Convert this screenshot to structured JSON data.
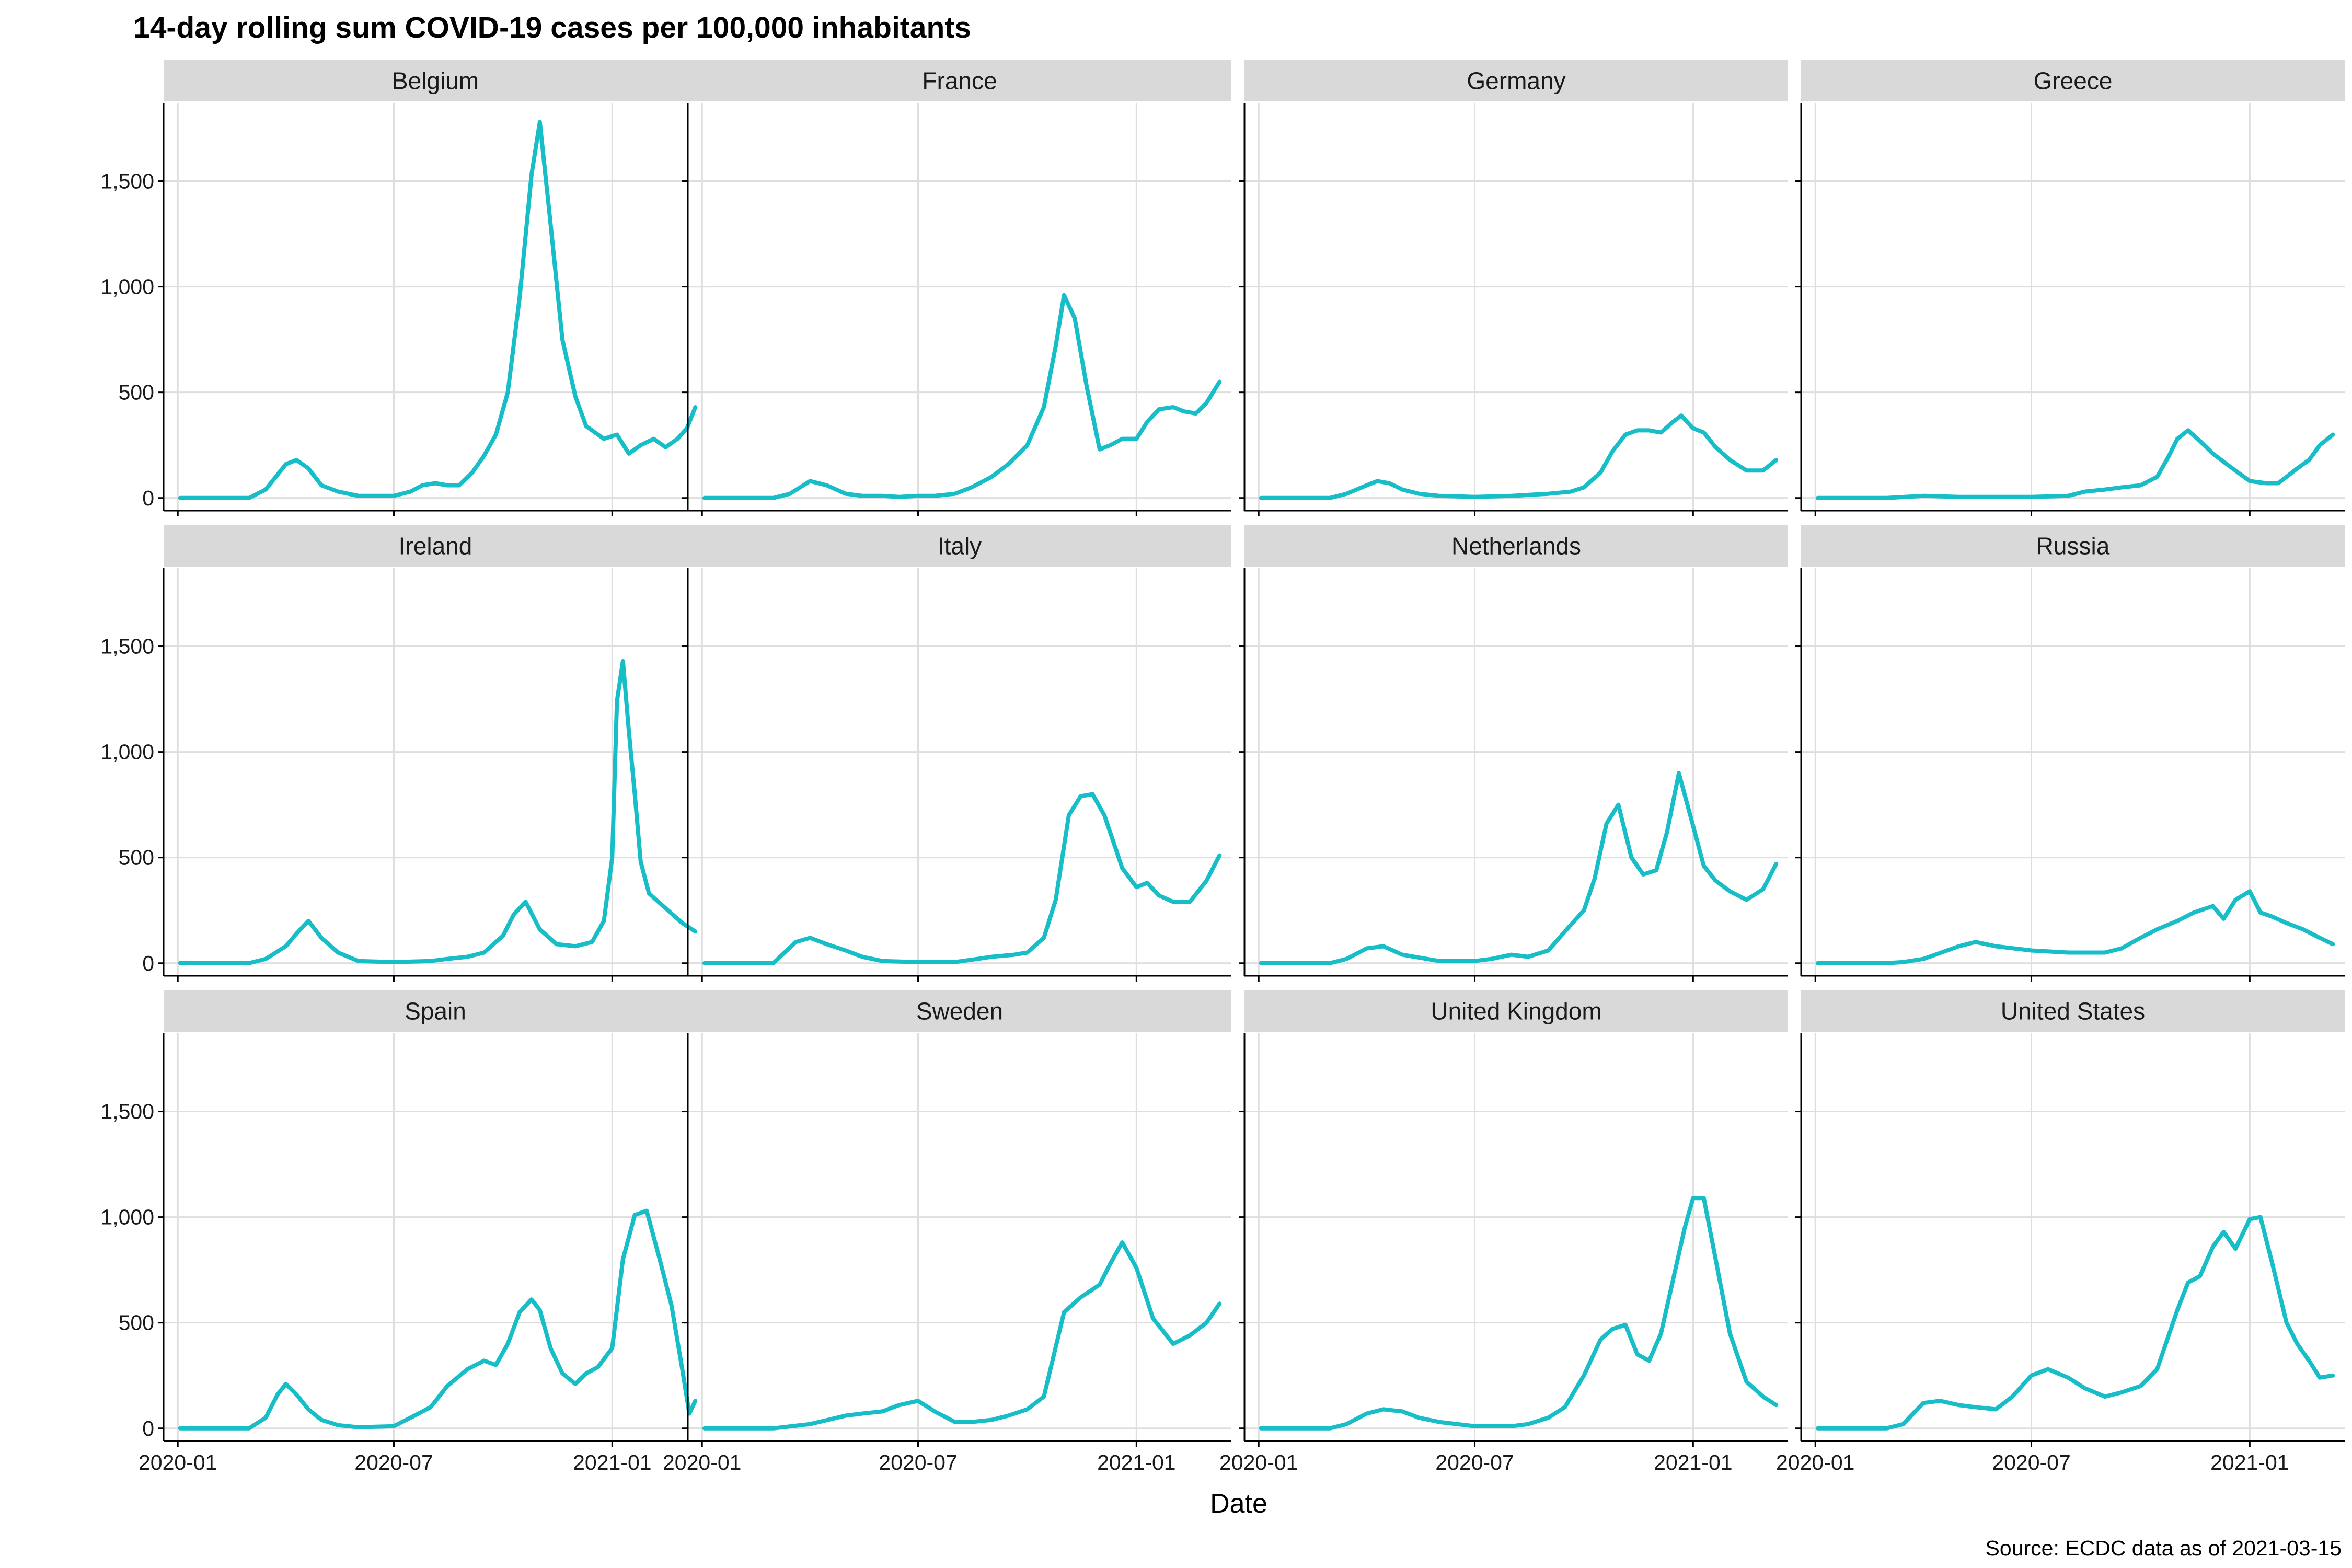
{
  "chart_data": {
    "type": "line",
    "title": "14-day rolling sum COVID-19 cases per 100,000 inhabitants",
    "xlabel": "Date",
    "ylabel": "",
    "caption": "Source: ECDC data as of 2021-03-15",
    "line_color": "#17bec8",
    "grid": true,
    "facet_layout": "4x3",
    "ylim": [
      -60,
      1870
    ],
    "y_ticks": [
      0,
      500,
      1000,
      1500
    ],
    "y_tick_labels": [
      "0",
      "500",
      "1,000",
      "1,500"
    ],
    "x_range": [
      "2019-12-20",
      "2021-03-22"
    ],
    "x_ticks": [
      "2020-01-01",
      "2020-07-01",
      "2021-01-01"
    ],
    "x_tick_labels": [
      "2020-01",
      "2020-07",
      "2021-01"
    ],
    "series": [
      {
        "name": "Belgium",
        "x": [
          "2020-01-03",
          "2020-03-01",
          "2020-03-15",
          "2020-04-01",
          "2020-04-10",
          "2020-04-20",
          "2020-05-01",
          "2020-05-15",
          "2020-06-01",
          "2020-06-15",
          "2020-07-01",
          "2020-07-15",
          "2020-07-25",
          "2020-08-05",
          "2020-08-15",
          "2020-08-25",
          "2020-09-05",
          "2020-09-15",
          "2020-09-25",
          "2020-10-05",
          "2020-10-15",
          "2020-10-25",
          "2020-11-01",
          "2020-11-10",
          "2020-11-20",
          "2020-12-01",
          "2020-12-10",
          "2020-12-25",
          "2021-01-05",
          "2021-01-15",
          "2021-01-25",
          "2021-02-05",
          "2021-02-15",
          "2021-02-25",
          "2021-03-05",
          "2021-03-12"
        ],
        "values": [
          0,
          0,
          40,
          160,
          180,
          140,
          60,
          30,
          10,
          10,
          10,
          30,
          60,
          70,
          60,
          60,
          120,
          200,
          300,
          500,
          950,
          1530,
          1780,
          1300,
          750,
          480,
          340,
          280,
          300,
          210,
          250,
          280,
          240,
          280,
          330,
          430
        ]
      },
      {
        "name": "France",
        "x": [
          "2020-01-03",
          "2020-03-01",
          "2020-03-15",
          "2020-04-01",
          "2020-04-15",
          "2020-05-01",
          "2020-05-15",
          "2020-06-01",
          "2020-06-15",
          "2020-07-01",
          "2020-07-15",
          "2020-08-01",
          "2020-08-15",
          "2020-09-01",
          "2020-09-15",
          "2020-10-01",
          "2020-10-15",
          "2020-10-25",
          "2020-11-01",
          "2020-11-10",
          "2020-11-20",
          "2020-12-01",
          "2020-12-10",
          "2020-12-20",
          "2021-01-01",
          "2021-01-10",
          "2021-01-20",
          "2021-02-01",
          "2021-02-10",
          "2021-02-20",
          "2021-03-01",
          "2021-03-12"
        ],
        "values": [
          0,
          0,
          20,
          80,
          60,
          20,
          10,
          10,
          5,
          10,
          10,
          20,
          50,
          100,
          160,
          250,
          430,
          720,
          960,
          850,
          530,
          230,
          250,
          280,
          280,
          360,
          420,
          430,
          410,
          400,
          450,
          550
        ]
      },
      {
        "name": "Germany",
        "x": [
          "2020-01-03",
          "2020-03-01",
          "2020-03-15",
          "2020-04-01",
          "2020-04-10",
          "2020-04-20",
          "2020-05-01",
          "2020-05-15",
          "2020-06-01",
          "2020-07-01",
          "2020-08-01",
          "2020-09-01",
          "2020-09-20",
          "2020-10-01",
          "2020-10-15",
          "2020-10-25",
          "2020-11-05",
          "2020-11-15",
          "2020-11-25",
          "2020-12-05",
          "2020-12-15",
          "2020-12-22",
          "2021-01-01",
          "2021-01-10",
          "2021-01-20",
          "2021-02-01",
          "2021-02-15",
          "2021-03-01",
          "2021-03-12"
        ],
        "values": [
          0,
          0,
          20,
          60,
          80,
          70,
          40,
          20,
          10,
          5,
          10,
          20,
          30,
          50,
          120,
          220,
          300,
          320,
          320,
          310,
          360,
          390,
          330,
          310,
          240,
          180,
          130,
          130,
          180
        ]
      },
      {
        "name": "Greece",
        "x": [
          "2020-01-03",
          "2020-03-01",
          "2020-04-01",
          "2020-05-01",
          "2020-06-01",
          "2020-07-01",
          "2020-08-01",
          "2020-08-15",
          "2020-09-01",
          "2020-09-15",
          "2020-10-01",
          "2020-10-15",
          "2020-10-25",
          "2020-11-01",
          "2020-11-10",
          "2020-11-20",
          "2020-12-01",
          "2020-12-15",
          "2021-01-01",
          "2021-01-15",
          "2021-01-25",
          "2021-02-01",
          "2021-02-10",
          "2021-02-20",
          "2021-03-01",
          "2021-03-12"
        ],
        "values": [
          0,
          0,
          10,
          5,
          5,
          5,
          10,
          30,
          40,
          50,
          60,
          100,
          200,
          280,
          320,
          270,
          210,
          150,
          80,
          70,
          70,
          100,
          140,
          180,
          250,
          300
        ]
      },
      {
        "name": "Ireland",
        "x": [
          "2020-01-03",
          "2020-03-01",
          "2020-03-15",
          "2020-04-01",
          "2020-04-10",
          "2020-04-20",
          "2020-05-01",
          "2020-05-15",
          "2020-06-01",
          "2020-07-01",
          "2020-08-01",
          "2020-08-15",
          "2020-09-01",
          "2020-09-15",
          "2020-10-01",
          "2020-10-10",
          "2020-10-20",
          "2020-11-01",
          "2020-11-15",
          "2020-12-01",
          "2020-12-15",
          "2020-12-25",
          "2021-01-01",
          "2021-01-05",
          "2021-01-10",
          "2021-01-15",
          "2021-01-20",
          "2021-01-25",
          "2021-02-01",
          "2021-02-15",
          "2021-03-01",
          "2021-03-12"
        ],
        "values": [
          0,
          0,
          20,
          80,
          140,
          200,
          120,
          50,
          10,
          5,
          10,
          20,
          30,
          50,
          130,
          230,
          290,
          160,
          90,
          80,
          100,
          200,
          500,
          1240,
          1430,
          1100,
          800,
          480,
          330,
          260,
          190,
          150
        ]
      },
      {
        "name": "Italy",
        "x": [
          "2020-01-03",
          "2020-03-01",
          "2020-03-20",
          "2020-04-01",
          "2020-04-15",
          "2020-05-01",
          "2020-05-15",
          "2020-06-01",
          "2020-07-01",
          "2020-08-01",
          "2020-08-20",
          "2020-09-01",
          "2020-09-20",
          "2020-10-01",
          "2020-10-15",
          "2020-10-25",
          "2020-11-05",
          "2020-11-15",
          "2020-11-25",
          "2020-12-05",
          "2020-12-20",
          "2021-01-01",
          "2021-01-10",
          "2021-01-20",
          "2021-02-01",
          "2021-02-15",
          "2021-03-01",
          "2021-03-12"
        ],
        "values": [
          0,
          0,
          100,
          120,
          90,
          60,
          30,
          10,
          5,
          5,
          20,
          30,
          40,
          50,
          120,
          300,
          700,
          790,
          800,
          700,
          450,
          360,
          380,
          320,
          290,
          290,
          390,
          510
        ]
      },
      {
        "name": "Netherlands",
        "x": [
          "2020-01-03",
          "2020-03-01",
          "2020-03-15",
          "2020-04-01",
          "2020-04-15",
          "2020-05-01",
          "2020-06-01",
          "2020-07-01",
          "2020-07-15",
          "2020-08-01",
          "2020-08-15",
          "2020-09-01",
          "2020-09-15",
          "2020-10-01",
          "2020-10-10",
          "2020-10-20",
          "2020-10-30",
          "2020-11-10",
          "2020-11-20",
          "2020-12-01",
          "2020-12-10",
          "2020-12-20",
          "2021-01-01",
          "2021-01-10",
          "2021-01-20",
          "2021-02-01",
          "2021-02-15",
          "2021-03-01",
          "2021-03-12"
        ],
        "values": [
          0,
          0,
          20,
          70,
          80,
          40,
          10,
          10,
          20,
          40,
          30,
          60,
          150,
          250,
          400,
          660,
          750,
          500,
          420,
          440,
          620,
          900,
          650,
          460,
          390,
          340,
          300,
          350,
          470
        ]
      },
      {
        "name": "Russia",
        "x": [
          "2020-01-03",
          "2020-03-01",
          "2020-03-15",
          "2020-04-01",
          "2020-05-01",
          "2020-05-15",
          "2020-06-01",
          "2020-07-01",
          "2020-08-01",
          "2020-09-01",
          "2020-09-15",
          "2020-10-01",
          "2020-10-15",
          "2020-11-01",
          "2020-11-15",
          "2020-12-01",
          "2020-12-10",
          "2020-12-20",
          "2021-01-01",
          "2021-01-10",
          "2021-01-20",
          "2021-02-01",
          "2021-02-15",
          "2021-03-01",
          "2021-03-12"
        ],
        "values": [
          0,
          0,
          5,
          20,
          80,
          100,
          80,
          60,
          50,
          50,
          70,
          120,
          160,
          200,
          240,
          270,
          210,
          300,
          340,
          240,
          220,
          190,
          160,
          120,
          90
        ]
      },
      {
        "name": "Spain",
        "x": [
          "2020-01-03",
          "2020-03-01",
          "2020-03-15",
          "2020-03-25",
          "2020-04-01",
          "2020-04-10",
          "2020-04-20",
          "2020-05-01",
          "2020-05-15",
          "2020-06-01",
          "2020-07-01",
          "2020-07-15",
          "2020-08-01",
          "2020-08-15",
          "2020-09-01",
          "2020-09-15",
          "2020-09-25",
          "2020-10-05",
          "2020-10-15",
          "2020-10-25",
          "2020-11-01",
          "2020-11-10",
          "2020-11-20",
          "2020-12-01",
          "2020-12-10",
          "2020-12-20",
          "2021-01-01",
          "2021-01-10",
          "2021-01-20",
          "2021-01-30",
          "2021-02-10",
          "2021-02-20",
          "2021-03-01",
          "2021-03-07",
          "2021-03-12"
        ],
        "values": [
          0,
          0,
          50,
          160,
          210,
          160,
          90,
          40,
          15,
          5,
          10,
          50,
          100,
          200,
          280,
          320,
          300,
          400,
          550,
          610,
          560,
          380,
          260,
          210,
          260,
          290,
          380,
          800,
          1010,
          1030,
          800,
          580,
          280,
          70,
          130
        ]
      },
      {
        "name": "Sweden",
        "x": [
          "2020-01-03",
          "2020-03-01",
          "2020-04-01",
          "2020-05-01",
          "2020-05-15",
          "2020-06-01",
          "2020-06-15",
          "2020-07-01",
          "2020-07-15",
          "2020-08-01",
          "2020-08-15",
          "2020-09-01",
          "2020-09-15",
          "2020-10-01",
          "2020-10-15",
          "2020-11-01",
          "2020-11-15",
          "2020-12-01",
          "2020-12-10",
          "2020-12-20",
          "2021-01-01",
          "2021-01-15",
          "2021-02-01",
          "2021-02-15",
          "2021-03-01",
          "2021-03-12"
        ],
        "values": [
          0,
          0,
          20,
          60,
          70,
          80,
          110,
          130,
          80,
          30,
          30,
          40,
          60,
          90,
          150,
          550,
          620,
          680,
          780,
          880,
          760,
          520,
          400,
          440,
          500,
          590
        ]
      },
      {
        "name": "United Kingdom",
        "x": [
          "2020-01-03",
          "2020-03-01",
          "2020-03-15",
          "2020-04-01",
          "2020-04-15",
          "2020-05-01",
          "2020-05-15",
          "2020-06-01",
          "2020-07-01",
          "2020-08-01",
          "2020-08-15",
          "2020-09-01",
          "2020-09-15",
          "2020-10-01",
          "2020-10-15",
          "2020-10-25",
          "2020-11-05",
          "2020-11-15",
          "2020-11-25",
          "2020-12-05",
          "2020-12-15",
          "2020-12-25",
          "2021-01-01",
          "2021-01-10",
          "2021-01-20",
          "2021-02-01",
          "2021-02-15",
          "2021-03-01",
          "2021-03-12"
        ],
        "values": [
          0,
          0,
          20,
          70,
          90,
          80,
          50,
          30,
          10,
          10,
          20,
          50,
          100,
          250,
          420,
          470,
          490,
          350,
          320,
          450,
          700,
          950,
          1090,
          1090,
          800,
          450,
          220,
          150,
          110
        ]
      },
      {
        "name": "United States",
        "x": [
          "2020-01-03",
          "2020-03-01",
          "2020-03-15",
          "2020-04-01",
          "2020-04-15",
          "2020-05-01",
          "2020-05-15",
          "2020-06-01",
          "2020-06-15",
          "2020-07-01",
          "2020-07-15",
          "2020-08-01",
          "2020-08-15",
          "2020-09-01",
          "2020-09-15",
          "2020-10-01",
          "2020-10-15",
          "2020-11-01",
          "2020-11-10",
          "2020-11-20",
          "2020-12-01",
          "2020-12-10",
          "2020-12-20",
          "2021-01-01",
          "2021-01-10",
          "2021-01-20",
          "2021-02-01",
          "2021-02-10",
          "2021-02-20",
          "2021-03-01",
          "2021-03-12"
        ],
        "values": [
          0,
          0,
          20,
          120,
          130,
          110,
          100,
          90,
          150,
          250,
          280,
          240,
          190,
          150,
          170,
          200,
          280,
          560,
          690,
          720,
          860,
          930,
          850,
          990,
          1000,
          780,
          500,
          400,
          320,
          240,
          250
        ]
      }
    ]
  }
}
